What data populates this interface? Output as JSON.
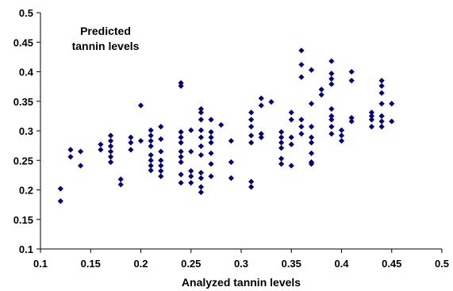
{
  "chart_data": {
    "type": "scatter",
    "annotation_lines": [
      "Predicted",
      "tannin levels"
    ],
    "xlabel": "Analyzed tannin levels",
    "ylabel": "",
    "xlim": [
      0.1,
      0.5
    ],
    "ylim": [
      0.1,
      0.5
    ],
    "xticks": [
      "0.1",
      "0.15",
      "0.2",
      "0.25",
      "0.3",
      "0.35",
      "0.4",
      "0.45",
      "0.5"
    ],
    "yticks": [
      "0.1",
      "0.15",
      "0.2",
      "0.25",
      "0.3",
      "0.35",
      "0.4",
      "0.45",
      "0.5"
    ],
    "grid": false,
    "legend": "none",
    "marker": "diamond",
    "marker_color": "#000080",
    "series": [
      {
        "points": [
          [
            0.12,
            0.202
          ],
          [
            0.12,
            0.181
          ],
          [
            0.13,
            0.268
          ],
          [
            0.13,
            0.256
          ],
          [
            0.14,
            0.265
          ],
          [
            0.14,
            0.241
          ],
          [
            0.16,
            0.277
          ],
          [
            0.16,
            0.268
          ],
          [
            0.17,
            0.292
          ],
          [
            0.17,
            0.283
          ],
          [
            0.17,
            0.274
          ],
          [
            0.17,
            0.265
          ],
          [
            0.17,
            0.256
          ],
          [
            0.17,
            0.247
          ],
          [
            0.18,
            0.218
          ],
          [
            0.18,
            0.209
          ],
          [
            0.19,
            0.289
          ],
          [
            0.19,
            0.28
          ],
          [
            0.19,
            0.268
          ],
          [
            0.2,
            0.343
          ],
          [
            0.2,
            0.283
          ],
          [
            0.21,
            0.301
          ],
          [
            0.21,
            0.292
          ],
          [
            0.21,
            0.283
          ],
          [
            0.21,
            0.274
          ],
          [
            0.21,
            0.259
          ],
          [
            0.21,
            0.25
          ],
          [
            0.21,
            0.241
          ],
          [
            0.21,
            0.233
          ],
          [
            0.22,
            0.307
          ],
          [
            0.22,
            0.286
          ],
          [
            0.22,
            0.265
          ],
          [
            0.22,
            0.25
          ],
          [
            0.22,
            0.241
          ],
          [
            0.22,
            0.232
          ],
          [
            0.22,
            0.223
          ],
          [
            0.24,
            0.381
          ],
          [
            0.24,
            0.376
          ],
          [
            0.24,
            0.298
          ],
          [
            0.24,
            0.289
          ],
          [
            0.24,
            0.28
          ],
          [
            0.24,
            0.265
          ],
          [
            0.24,
            0.256
          ],
          [
            0.24,
            0.247
          ],
          [
            0.24,
            0.226
          ],
          [
            0.24,
            0.212
          ],
          [
            0.25,
            0.301
          ],
          [
            0.25,
            0.265
          ],
          [
            0.25,
            0.232
          ],
          [
            0.25,
            0.223
          ],
          [
            0.25,
            0.212
          ],
          [
            0.26,
            0.337
          ],
          [
            0.26,
            0.331
          ],
          [
            0.26,
            0.319
          ],
          [
            0.26,
            0.301
          ],
          [
            0.26,
            0.289
          ],
          [
            0.26,
            0.274
          ],
          [
            0.26,
            0.259
          ],
          [
            0.26,
            0.229
          ],
          [
            0.26,
            0.22
          ],
          [
            0.26,
            0.205
          ],
          [
            0.26,
            0.196
          ],
          [
            0.27,
            0.319
          ],
          [
            0.27,
            0.298
          ],
          [
            0.27,
            0.289
          ],
          [
            0.27,
            0.28
          ],
          [
            0.27,
            0.262
          ],
          [
            0.27,
            0.244
          ],
          [
            0.27,
            0.223
          ],
          [
            0.28,
            0.31
          ],
          [
            0.29,
            0.283
          ],
          [
            0.29,
            0.247
          ],
          [
            0.29,
            0.22
          ],
          [
            0.31,
            0.331
          ],
          [
            0.31,
            0.319
          ],
          [
            0.31,
            0.307
          ],
          [
            0.31,
            0.292
          ],
          [
            0.31,
            0.28
          ],
          [
            0.31,
            0.214
          ],
          [
            0.31,
            0.205
          ],
          [
            0.32,
            0.355
          ],
          [
            0.32,
            0.343
          ],
          [
            0.32,
            0.295
          ],
          [
            0.32,
            0.289
          ],
          [
            0.33,
            0.349
          ],
          [
            0.34,
            0.298
          ],
          [
            0.34,
            0.289
          ],
          [
            0.34,
            0.28
          ],
          [
            0.34,
            0.271
          ],
          [
            0.34,
            0.253
          ],
          [
            0.34,
            0.244
          ],
          [
            0.35,
            0.331
          ],
          [
            0.35,
            0.319
          ],
          [
            0.35,
            0.289
          ],
          [
            0.35,
            0.277
          ],
          [
            0.35,
            0.241
          ],
          [
            0.36,
            0.436
          ],
          [
            0.36,
            0.412
          ],
          [
            0.36,
            0.391
          ],
          [
            0.36,
            0.319
          ],
          [
            0.36,
            0.307
          ],
          [
            0.36,
            0.295
          ],
          [
            0.37,
            0.403
          ],
          [
            0.37,
            0.346
          ],
          [
            0.37,
            0.307
          ],
          [
            0.37,
            0.289
          ],
          [
            0.37,
            0.28
          ],
          [
            0.37,
            0.262
          ],
          [
            0.37,
            0.247
          ],
          [
            0.37,
            0.244
          ],
          [
            0.38,
            0.37
          ],
          [
            0.38,
            0.361
          ],
          [
            0.39,
            0.418
          ],
          [
            0.39,
            0.397
          ],
          [
            0.39,
            0.388
          ],
          [
            0.39,
            0.379
          ],
          [
            0.39,
            0.337
          ],
          [
            0.39,
            0.325
          ],
          [
            0.39,
            0.319
          ],
          [
            0.39,
            0.307
          ],
          [
            0.39,
            0.295
          ],
          [
            0.4,
            0.301
          ],
          [
            0.4,
            0.292
          ],
          [
            0.4,
            0.283
          ],
          [
            0.41,
            0.4
          ],
          [
            0.41,
            0.385
          ],
          [
            0.41,
            0.322
          ],
          [
            0.41,
            0.316
          ],
          [
            0.43,
            0.331
          ],
          [
            0.43,
            0.325
          ],
          [
            0.43,
            0.319
          ],
          [
            0.43,
            0.307
          ],
          [
            0.44,
            0.385
          ],
          [
            0.44,
            0.376
          ],
          [
            0.44,
            0.364
          ],
          [
            0.44,
            0.346
          ],
          [
            0.44,
            0.325
          ],
          [
            0.44,
            0.316
          ],
          [
            0.44,
            0.307
          ],
          [
            0.45,
            0.346
          ],
          [
            0.45,
            0.316
          ]
        ]
      }
    ]
  }
}
